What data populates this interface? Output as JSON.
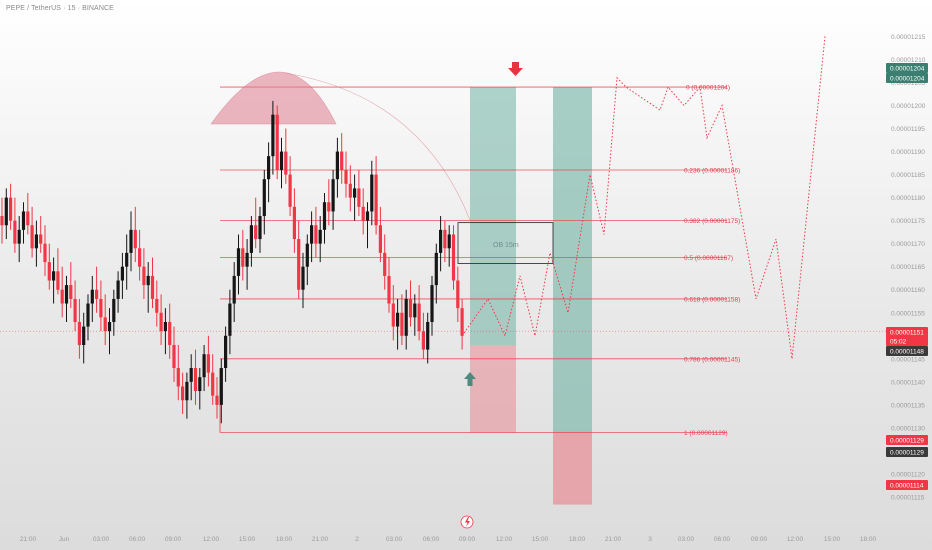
{
  "header": {
    "symbol_title": "PEPE / TetherUS · 15 · BINANCE"
  },
  "colors": {
    "bull": "#161616",
    "bear": "#f23645",
    "fib": "#f23645",
    "target_green": "#6fb3a3",
    "stop_red": "#e88a94",
    "ob_border": "#222222",
    "tag_green": "#3a7f6f",
    "tag_red": "#f23645",
    "tag_dark": "#3a3a3a"
  },
  "chart_data": {
    "type": "candlestick",
    "y_range": [
      1.11e-05,
      1.219e-05
    ],
    "y_ticks": [
      "0.00001215",
      "0.00001210",
      "0.00001205",
      "0.00001200",
      "0.00001195",
      "0.00001190",
      "0.00001185",
      "0.00001180",
      "0.00001175",
      "0.00001170",
      "0.00001165",
      "0.00001160",
      "0.00001155",
      "0.00001150",
      "0.00001145",
      "0.00001140",
      "0.00001135",
      "0.00001130",
      "0.00001125",
      "0.00001120",
      "0.00001115"
    ],
    "x_ticks": [
      "21:00",
      "Jun",
      "03:00",
      "06:00",
      "09:00",
      "12:00",
      "15:00",
      "18:00",
      "21:00",
      "2",
      "03:00",
      "06:00",
      "09:00",
      "12:00",
      "15:00",
      "18:00",
      "21:00",
      "3",
      "03:00",
      "06:00",
      "09:00",
      "12:00",
      "15:00",
      "18:00"
    ],
    "candles": [
      {
        "o": 1.176e-05,
        "h": 1.18e-05,
        "l": 1.17e-05,
        "c": 1.174e-05
      },
      {
        "o": 1.174e-05,
        "h": 1.182e-05,
        "l": 1.171e-05,
        "c": 1.18e-05
      },
      {
        "o": 1.18e-05,
        "h": 1.183e-05,
        "l": 1.173e-05,
        "c": 1.175e-05
      },
      {
        "o": 1.175e-05,
        "h": 1.18e-05,
        "l": 1.168e-05,
        "c": 1.17e-05
      },
      {
        "o": 1.17e-05,
        "h": 1.176e-05,
        "l": 1.166e-05,
        "c": 1.173e-05
      },
      {
        "o": 1.173e-05,
        "h": 1.179e-05,
        "l": 1.17e-05,
        "c": 1.177e-05
      },
      {
        "o": 1.177e-05,
        "h": 1.181e-05,
        "l": 1.172e-05,
        "c": 1.174e-05
      },
      {
        "o": 1.174e-05,
        "h": 1.178e-05,
        "l": 1.167e-05,
        "c": 1.169e-05
      },
      {
        "o": 1.169e-05,
        "h": 1.175e-05,
        "l": 1.165e-05,
        "c": 1.172e-05
      },
      {
        "o": 1.172e-05,
        "h": 1.176e-05,
        "l": 1.168e-05,
        "c": 1.17e-05
      },
      {
        "o": 1.17e-05,
        "h": 1.174e-05,
        "l": 1.163e-05,
        "c": 1.166e-05
      },
      {
        "o": 1.166e-05,
        "h": 1.17e-05,
        "l": 1.16e-05,
        "c": 1.162e-05
      },
      {
        "o": 1.162e-05,
        "h": 1.167e-05,
        "l": 1.157e-05,
        "c": 1.164e-05
      },
      {
        "o": 1.164e-05,
        "h": 1.169e-05,
        "l": 1.159e-05,
        "c": 1.16e-05
      },
      {
        "o": 1.16e-05,
        "h": 1.165e-05,
        "l": 1.154e-05,
        "c": 1.157e-05
      },
      {
        "o": 1.157e-05,
        "h": 1.163e-05,
        "l": 1.153e-05,
        "c": 1.161e-05
      },
      {
        "o": 1.161e-05,
        "h": 1.166e-05,
        "l": 1.156e-05,
        "c": 1.158e-05
      },
      {
        "o": 1.158e-05,
        "h": 1.162e-05,
        "l": 1.151e-05,
        "c": 1.153e-05
      },
      {
        "o": 1.153e-05,
        "h": 1.158e-05,
        "l": 1.145e-05,
        "c": 1.148e-05
      },
      {
        "o": 1.148e-05,
        "h": 1.155e-05,
        "l": 1.144e-05,
        "c": 1.152e-05
      },
      {
        "o": 1.152e-05,
        "h": 1.159e-05,
        "l": 1.149e-05,
        "c": 1.157e-05
      },
      {
        "o": 1.157e-05,
        "h": 1.163e-05,
        "l": 1.153e-05,
        "c": 1.16e-05
      },
      {
        "o": 1.16e-05,
        "h": 1.165e-05,
        "l": 1.155e-05,
        "c": 1.158e-05
      },
      {
        "o": 1.158e-05,
        "h": 1.162e-05,
        "l": 1.151e-05,
        "c": 1.154e-05
      },
      {
        "o": 1.154e-05,
        "h": 1.159e-05,
        "l": 1.148e-05,
        "c": 1.151e-05
      },
      {
        "o": 1.151e-05,
        "h": 1.156e-05,
        "l": 1.146e-05,
        "c": 1.153e-05
      },
      {
        "o": 1.153e-05,
        "h": 1.16e-05,
        "l": 1.15e-05,
        "c": 1.158e-05
      },
      {
        "o": 1.158e-05,
        "h": 1.164e-05,
        "l": 1.155e-05,
        "c": 1.162e-05
      },
      {
        "o": 1.162e-05,
        "h": 1.168e-05,
        "l": 1.158e-05,
        "c": 1.165e-05
      },
      {
        "o": 1.165e-05,
        "h": 1.172e-05,
        "l": 1.16e-05,
        "c": 1.168e-05
      },
      {
        "o": 1.168e-05,
        "h": 1.177e-05,
        "l": 1.164e-05,
        "c": 1.173e-05
      },
      {
        "o": 1.173e-05,
        "h": 1.178e-05,
        "l": 1.166e-05,
        "c": 1.169e-05
      },
      {
        "o": 1.169e-05,
        "h": 1.173e-05,
        "l": 1.162e-05,
        "c": 1.165e-05
      },
      {
        "o": 1.165e-05,
        "h": 1.169e-05,
        "l": 1.158e-05,
        "c": 1.161e-05
      },
      {
        "o": 1.161e-05,
        "h": 1.166e-05,
        "l": 1.155e-05,
        "c": 1.163e-05
      },
      {
        "o": 1.163e-05,
        "h": 1.167e-05,
        "l": 1.156e-05,
        "c": 1.158e-05
      },
      {
        "o": 1.158e-05,
        "h": 1.162e-05,
        "l": 1.152e-05,
        "c": 1.155e-05
      },
      {
        "o": 1.155e-05,
        "h": 1.159e-05,
        "l": 1.148e-05,
        "c": 1.151e-05
      },
      {
        "o": 1.151e-05,
        "h": 1.156e-05,
        "l": 1.146e-05,
        "c": 1.153e-05
      },
      {
        "o": 1.153e-05,
        "h": 1.157e-05,
        "l": 1.145e-05,
        "c": 1.148e-05
      },
      {
        "o": 1.148e-05,
        "h": 1.152e-05,
        "l": 1.14e-05,
        "c": 1.143e-05
      },
      {
        "o": 1.143e-05,
        "h": 1.148e-05,
        "l": 1.136e-05,
        "c": 1.139e-05
      },
      {
        "o": 1.139e-05,
        "h": 1.142e-05,
        "l": 1.133e-05,
        "c": 1.136e-05
      },
      {
        "o": 1.136e-05,
        "h": 1.142e-05,
        "l": 1.132e-05,
        "c": 1.14e-05
      },
      {
        "o": 1.14e-05,
        "h": 1.146e-05,
        "l": 1.136e-05,
        "c": 1.143e-05
      },
      {
        "o": 1.143e-05,
        "h": 1.147e-05,
        "l": 1.135e-05,
        "c": 1.138e-05
      },
      {
        "o": 1.138e-05,
        "h": 1.143e-05,
        "l": 1.134e-05,
        "c": 1.141e-05
      },
      {
        "o": 1.141e-05,
        "h": 1.148e-05,
        "l": 1.138e-05,
        "c": 1.146e-05
      },
      {
        "o": 1.146e-05,
        "h": 1.15e-05,
        "l": 1.139e-05,
        "c": 1.142e-05
      },
      {
        "o": 1.142e-05,
        "h": 1.146e-05,
        "l": 1.135e-05,
        "c": 1.137e-05
      },
      {
        "o": 1.137e-05,
        "h": 1.141e-05,
        "l": 1.132e-05,
        "c": 1.135e-05
      },
      {
        "o": 1.135e-05,
        "h": 1.145e-05,
        "l": 1.131e-05,
        "c": 1.143e-05
      },
      {
        "o": 1.143e-05,
        "h": 1.152e-05,
        "l": 1.14e-05,
        "c": 1.15e-05
      },
      {
        "o": 1.15e-05,
        "h": 1.16e-05,
        "l": 1.146e-05,
        "c": 1.157e-05
      },
      {
        "o": 1.157e-05,
        "h": 1.166e-05,
        "l": 1.153e-05,
        "c": 1.163e-05
      },
      {
        "o": 1.163e-05,
        "h": 1.172e-05,
        "l": 1.159e-05,
        "c": 1.169e-05
      },
      {
        "o": 1.169e-05,
        "h": 1.173e-05,
        "l": 1.162e-05,
        "c": 1.165e-05
      },
      {
        "o": 1.165e-05,
        "h": 1.171e-05,
        "l": 1.16e-05,
        "c": 1.168e-05
      },
      {
        "o": 1.168e-05,
        "h": 1.176e-05,
        "l": 1.165e-05,
        "c": 1.174e-05
      },
      {
        "o": 1.174e-05,
        "h": 1.18e-05,
        "l": 1.169e-05,
        "c": 1.171e-05
      },
      {
        "o": 1.171e-05,
        "h": 1.178e-05,
        "l": 1.168e-05,
        "c": 1.176e-05
      },
      {
        "o": 1.176e-05,
        "h": 1.186e-05,
        "l": 1.172e-05,
        "c": 1.184e-05
      },
      {
        "o": 1.184e-05,
        "h": 1.192e-05,
        "l": 1.179e-05,
        "c": 1.189e-05
      },
      {
        "o": 1.189e-05,
        "h": 1.201e-05,
        "l": 1.185e-05,
        "c": 1.198e-05
      },
      {
        "o": 1.198e-05,
        "h": 1.2e-05,
        "l": 1.184e-05,
        "c": 1.186e-05
      },
      {
        "o": 1.186e-05,
        "h": 1.193e-05,
        "l": 1.182e-05,
        "c": 1.19e-05
      },
      {
        "o": 1.19e-05,
        "h": 1.195e-05,
        "l": 1.183e-05,
        "c": 1.185e-05
      },
      {
        "o": 1.185e-05,
        "h": 1.189e-05,
        "l": 1.176e-05,
        "c": 1.178e-05
      },
      {
        "o": 1.178e-05,
        "h": 1.182e-05,
        "l": 1.168e-05,
        "c": 1.171e-05
      },
      {
        "o": 1.171e-05,
        "h": 1.175e-05,
        "l": 1.158e-05,
        "c": 1.16e-05
      },
      {
        "o": 1.16e-05,
        "h": 1.168e-05,
        "l": 1.156e-05,
        "c": 1.165e-05
      },
      {
        "o": 1.165e-05,
        "h": 1.172e-05,
        "l": 1.161e-05,
        "c": 1.17e-05
      },
      {
        "o": 1.17e-05,
        "h": 1.177e-05,
        "l": 1.166e-05,
        "c": 1.174e-05
      },
      {
        "o": 1.174e-05,
        "h": 1.178e-05,
        "l": 1.167e-05,
        "c": 1.17e-05
      },
      {
        "o": 1.17e-05,
        "h": 1.176e-05,
        "l": 1.166e-05,
        "c": 1.173e-05
      },
      {
        "o": 1.173e-05,
        "h": 1.181e-05,
        "l": 1.17e-05,
        "c": 1.179e-05
      },
      {
        "o": 1.179e-05,
        "h": 1.184e-05,
        "l": 1.174e-05,
        "c": 1.177e-05
      },
      {
        "o": 1.177e-05,
        "h": 1.186e-05,
        "l": 1.173e-05,
        "c": 1.184e-05
      },
      {
        "o": 1.184e-05,
        "h": 1.193e-05,
        "l": 1.18e-05,
        "c": 1.19e-05
      },
      {
        "o": 1.19e-05,
        "h": 1.194e-05,
        "l": 1.183e-05,
        "c": 1.186e-05
      },
      {
        "o": 1.186e-05,
        "h": 1.19e-05,
        "l": 1.18e-05,
        "c": 1.183e-05
      },
      {
        "o": 1.183e-05,
        "h": 1.187e-05,
        "l": 1.177e-05,
        "c": 1.18e-05
      },
      {
        "o": 1.18e-05,
        "h": 1.185e-05,
        "l": 1.175e-05,
        "c": 1.182e-05
      },
      {
        "o": 1.182e-05,
        "h": 1.186e-05,
        "l": 1.176e-05,
        "c": 1.178e-05
      },
      {
        "o": 1.178e-05,
        "h": 1.182e-05,
        "l": 1.172e-05,
        "c": 1.175e-05
      },
      {
        "o": 1.175e-05,
        "h": 1.179e-05,
        "l": 1.169e-05,
        "c": 1.177e-05
      },
      {
        "o": 1.177e-05,
        "h": 1.188e-05,
        "l": 1.174e-05,
        "c": 1.185e-05
      },
      {
        "o": 1.185e-05,
        "h": 1.189e-05,
        "l": 1.172e-05,
        "c": 1.174e-05
      },
      {
        "o": 1.174e-05,
        "h": 1.178e-05,
        "l": 1.166e-05,
        "c": 1.168e-05
      },
      {
        "o": 1.168e-05,
        "h": 1.172e-05,
        "l": 1.16e-05,
        "c": 1.163e-05
      },
      {
        "o": 1.163e-05,
        "h": 1.167e-05,
        "l": 1.155e-05,
        "c": 1.157e-05
      },
      {
        "o": 1.157e-05,
        "h": 1.161e-05,
        "l": 1.149e-05,
        "c": 1.152e-05
      },
      {
        "o": 1.152e-05,
        "h": 1.158e-05,
        "l": 1.147e-05,
        "c": 1.155e-05
      },
      {
        "o": 1.155e-05,
        "h": 1.159e-05,
        "l": 1.148e-05,
        "c": 1.15e-05
      },
      {
        "o": 1.15e-05,
        "h": 1.16e-05,
        "l": 1.147e-05,
        "c": 1.158e-05
      },
      {
        "o": 1.158e-05,
        "h": 1.162e-05,
        "l": 1.152e-05,
        "c": 1.154e-05
      },
      {
        "o": 1.154e-05,
        "h": 1.159e-05,
        "l": 1.15e-05,
        "c": 1.157e-05
      },
      {
        "o": 1.157e-05,
        "h": 1.161e-05,
        "l": 1.149e-05,
        "c": 1.151e-05
      },
      {
        "o": 1.151e-05,
        "h": 1.155e-05,
        "l": 1.145e-05,
        "c": 1.147e-05
      },
      {
        "o": 1.147e-05,
        "h": 1.155e-05,
        "l": 1.144e-05,
        "c": 1.153e-05
      },
      {
        "o": 1.153e-05,
        "h": 1.163e-05,
        "l": 1.15e-05,
        "c": 1.161e-05
      },
      {
        "o": 1.161e-05,
        "h": 1.17e-05,
        "l": 1.157e-05,
        "c": 1.168e-05
      },
      {
        "o": 1.168e-05,
        "h": 1.176e-05,
        "l": 1.164e-05,
        "c": 1.173e-05
      },
      {
        "o": 1.173e-05,
        "h": 1.175e-05,
        "l": 1.166e-05,
        "c": 1.169e-05
      },
      {
        "o": 1.169e-05,
        "h": 1.174e-05,
        "l": 1.165e-05,
        "c": 1.172e-05
      },
      {
        "o": 1.172e-05,
        "h": 1.174e-05,
        "l": 1.16e-05,
        "c": 1.162e-05
      },
      {
        "o": 1.162e-05,
        "h": 1.165e-05,
        "l": 1.153e-05,
        "c": 1.156e-05
      },
      {
        "o": 1.156e-05,
        "h": 1.158e-05,
        "l": 1.147e-05,
        "c": 1.15e-05
      }
    ],
    "fib_levels": [
      {
        "ratio": 0,
        "price": 1.204e-05,
        "label": "0 (0.00001204)"
      },
      {
        "ratio": 0.236,
        "price": 1.186e-05,
        "label": "0.236 (0.00001186)"
      },
      {
        "ratio": 0.382,
        "price": 1.175e-05,
        "label": "0.382 (0.00001175)"
      },
      {
        "ratio": 0.5,
        "price": 1.167e-05,
        "label": "0.5 (0.00001167)"
      },
      {
        "ratio": 0.618,
        "price": 1.158e-05,
        "label": "0.618 (0.00001158)"
      },
      {
        "ratio": 0.786,
        "price": 1.145e-05,
        "label": "0.786 (0.00001145)"
      },
      {
        "ratio": 1,
        "price": 1.129e-05,
        "label": "1 (0.00001129)"
      }
    ],
    "order_block": {
      "label": "OB 15m",
      "top": 1.175e-05,
      "bottom": 1.167e-05
    },
    "price_tags": [
      {
        "value": "0.00001204",
        "style": "green"
      },
      {
        "value": "0.00001204",
        "style": "green"
      },
      {
        "value": "0.00001151",
        "style": "red"
      },
      {
        "value": "05:02",
        "style": "red"
      },
      {
        "value": "0.00001148",
        "style": "dark"
      },
      {
        "value": "0.00001129",
        "style": "red"
      },
      {
        "value": "0.00001129",
        "style": "dark"
      },
      {
        "value": "0.00001114",
        "style": "red"
      }
    ],
    "current_price": 1.151e-05,
    "projection_path": [
      [
        1.15e-05,
        0
      ],
      [
        1.158e-05,
        1
      ],
      [
        1.15e-05,
        2
      ],
      [
        1.163e-05,
        3
      ],
      [
        1.15e-05,
        4
      ],
      [
        1.168e-05,
        5
      ],
      [
        1.155e-05,
        6
      ],
      [
        1.185e-05,
        7
      ],
      [
        1.172e-05,
        8
      ],
      [
        1.206e-05,
        9
      ],
      [
        1.204e-05,
        10
      ],
      [
        1.199e-05,
        11
      ],
      [
        1.204e-05,
        12
      ],
      [
        1.2e-05,
        13
      ],
      [
        1.204e-05,
        14
      ],
      [
        1.193e-05,
        15
      ],
      [
        1.2e-05,
        16
      ],
      [
        1.158e-05,
        17
      ],
      [
        1.171e-05,
        18
      ],
      [
        1.145e-05,
        19
      ],
      [
        1.215e-05,
        20
      ]
    ]
  }
}
